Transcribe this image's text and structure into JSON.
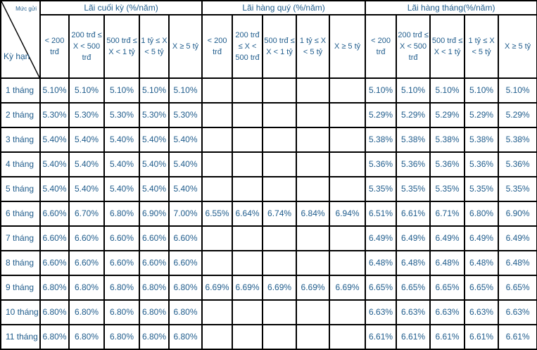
{
  "corner": {
    "top": "Mức gửi",
    "bottom": "Kỳ hạn"
  },
  "groups": [
    "Lãi cuối kỳ (%/năm)",
    "Lãi hàng quý (%/năm)",
    "Lãi hàng tháng(%/năm)"
  ],
  "subheaders": [
    [
      "< 200 trđ",
      "200 trđ ≤ X < 500 trđ",
      "500 trđ ≤ X < 1 tỷ",
      "1 tỷ ≤ X < 5 tỷ",
      "X ≥ 5 tỷ"
    ],
    [
      "< 200 trđ",
      "200 trđ ≤ X < 500 trđ",
      "500 trđ ≤ X < 1 tỷ",
      "1 tỷ ≤ X < 5 tỷ",
      "X ≥ 5 tỷ"
    ],
    [
      "< 200 trđ",
      "200 trđ ≤ X < 500 trđ",
      "500 trđ ≤ X < 1 tỷ",
      "1 tỷ ≤ X < 5 tỷ",
      "X ≥ 5 tỷ"
    ]
  ],
  "rows": [
    {
      "term": "1 tháng",
      "cuoi_ky": [
        "5.10%",
        "5.10%",
        "5.10%",
        "5.10%",
        "5.10%"
      ],
      "hang_quy": [
        "",
        "",
        "",
        "",
        ""
      ],
      "hang_thang": [
        "5.10%",
        "5.10%",
        "5.10%",
        "5.10%",
        "5.10%"
      ]
    },
    {
      "term": "2 tháng",
      "cuoi_ky": [
        "5.30%",
        "5.30%",
        "5.30%",
        "5.30%",
        "5.30%"
      ],
      "hang_quy": [
        "",
        "",
        "",
        "",
        ""
      ],
      "hang_thang": [
        "5.29%",
        "5.29%",
        "5.29%",
        "5.29%",
        "5.29%"
      ]
    },
    {
      "term": "3 tháng",
      "cuoi_ky": [
        "5.40%",
        "5.40%",
        "5.40%",
        "5.40%",
        "5.40%"
      ],
      "hang_quy": [
        "",
        "",
        "",
        "",
        ""
      ],
      "hang_thang": [
        "5.38%",
        "5.38%",
        "5.38%",
        "5.38%",
        "5.38%"
      ]
    },
    {
      "term": "4 tháng",
      "cuoi_ky": [
        "5.40%",
        "5.40%",
        "5.40%",
        "5.40%",
        "5.40%"
      ],
      "hang_quy": [
        "",
        "",
        "",
        "",
        ""
      ],
      "hang_thang": [
        "5.36%",
        "5.36%",
        "5.36%",
        "5.36%",
        "5.36%"
      ]
    },
    {
      "term": "5 tháng",
      "cuoi_ky": [
        "5.40%",
        "5.40%",
        "5.40%",
        "5.40%",
        "5.40%"
      ],
      "hang_quy": [
        "",
        "",
        "",
        "",
        ""
      ],
      "hang_thang": [
        "5.35%",
        "5.35%",
        "5.35%",
        "5.35%",
        "5.35%"
      ]
    },
    {
      "term": "6 tháng",
      "cuoi_ky": [
        "6.60%",
        "6.70%",
        "6.80%",
        "6.90%",
        "7.00%"
      ],
      "hang_quy": [
        "6.55%",
        "6.64%",
        "6.74%",
        "6.84%",
        "6.94%"
      ],
      "hang_thang": [
        "6.51%",
        "6.61%",
        "6.71%",
        "6.80%",
        "6.90%"
      ]
    },
    {
      "term": "7 tháng",
      "cuoi_ky": [
        "6.60%",
        "6.60%",
        "6.60%",
        "6.60%",
        "6.60%"
      ],
      "hang_quy": [
        "",
        "",
        "",
        "",
        ""
      ],
      "hang_thang": [
        "6.49%",
        "6.49%",
        "6.49%",
        "6.49%",
        "6.49%"
      ]
    },
    {
      "term": "8 tháng",
      "cuoi_ky": [
        "6.60%",
        "6.60%",
        "6.60%",
        "6.60%",
        "6.60%"
      ],
      "hang_quy": [
        "",
        "",
        "",
        "",
        ""
      ],
      "hang_thang": [
        "6.48%",
        "6.48%",
        "6.48%",
        "6.48%",
        "6.48%"
      ]
    },
    {
      "term": "9 tháng",
      "cuoi_ky": [
        "6.80%",
        "6.80%",
        "6.80%",
        "6.80%",
        "6.80%"
      ],
      "hang_quy": [
        "6.69%",
        "6.69%",
        "6.69%",
        "6.69%",
        "6.69%"
      ],
      "hang_thang": [
        "6.65%",
        "6.65%",
        "6.65%",
        "6.65%",
        "6.65%"
      ]
    },
    {
      "term": "10 tháng",
      "cuoi_ky": [
        "6.80%",
        "6.80%",
        "6.80%",
        "6.80%",
        "6.80%"
      ],
      "hang_quy": [
        "",
        "",
        "",
        "",
        ""
      ],
      "hang_thang": [
        "6.63%",
        "6.63%",
        "6.63%",
        "6.63%",
        "6.63%"
      ]
    },
    {
      "term": "11 tháng",
      "cuoi_ky": [
        "6.80%",
        "6.80%",
        "6.80%",
        "6.80%",
        "6.80%"
      ],
      "hang_quy": [
        "",
        "",
        "",
        "",
        ""
      ],
      "hang_thang": [
        "6.61%",
        "6.61%",
        "6.61%",
        "6.61%",
        "6.61%"
      ]
    }
  ],
  "colors": {
    "text": "#1f5c8c",
    "border": "#000000",
    "background": "#ffffff"
  }
}
